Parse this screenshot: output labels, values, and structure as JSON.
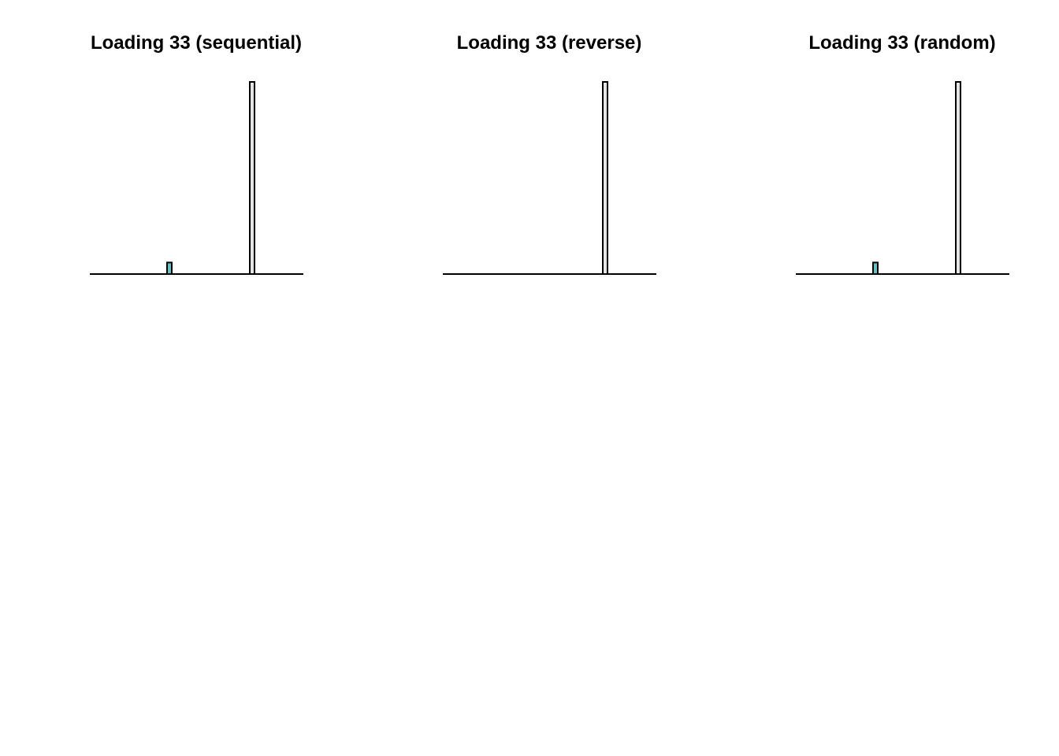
{
  "chart_data": [
    {
      "type": "bar",
      "title": "Loading 33 (sequential)",
      "xlabel": "",
      "ylabel": "",
      "ylim": [
        0,
        1
      ],
      "bars": [
        {
          "value": 0.06,
          "color": "#5ec4c8"
        },
        {
          "value": 1.0,
          "color": "#e4e4e4"
        }
      ]
    },
    {
      "type": "bar",
      "title": "Loading 33 (reverse)",
      "xlabel": "",
      "ylabel": "",
      "ylim": [
        0,
        1
      ],
      "bars": [
        {
          "value": 1.0,
          "color": "#e4e4e4"
        }
      ]
    },
    {
      "type": "bar",
      "title": "Loading 33 (random)",
      "xlabel": "",
      "ylabel": "",
      "ylim": [
        0,
        1
      ],
      "bars": [
        {
          "value": 0.06,
          "color": "#5ec4c8"
        },
        {
          "value": 1.0,
          "color": "#e4e4e4"
        }
      ]
    }
  ]
}
